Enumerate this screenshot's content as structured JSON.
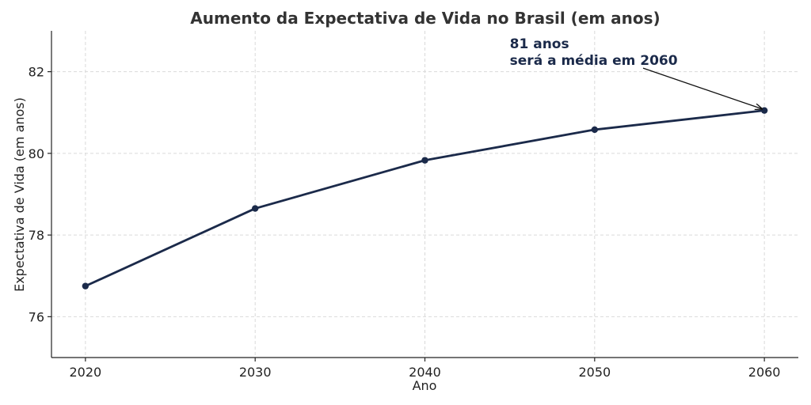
{
  "chart_data": {
    "type": "line",
    "title": "Aumento da Expectativa de Vida no Brasil (em anos)",
    "xlabel": "Ano",
    "ylabel": "Expectativa de Vida (em anos)",
    "x": [
      2020,
      2030,
      2040,
      2050,
      2060
    ],
    "xticks": [
      "2020",
      "2030",
      "2040",
      "2050",
      "2060"
    ],
    "yticks": [
      "76",
      "78",
      "80",
      "82"
    ],
    "ylim": [
      75,
      83
    ],
    "xlim": [
      2018,
      2062
    ],
    "grid": true,
    "series": [
      {
        "values": [
          76.75,
          78.65,
          79.83,
          80.58,
          81.05
        ],
        "color": "#1b2a4a"
      }
    ],
    "annotation": {
      "line1": "81 anos",
      "line2": "será a média em 2060",
      "x": 2060,
      "y": 81.05,
      "text_x": 2045,
      "text_y": 82.3,
      "color": "#1b2a4a"
    }
  }
}
